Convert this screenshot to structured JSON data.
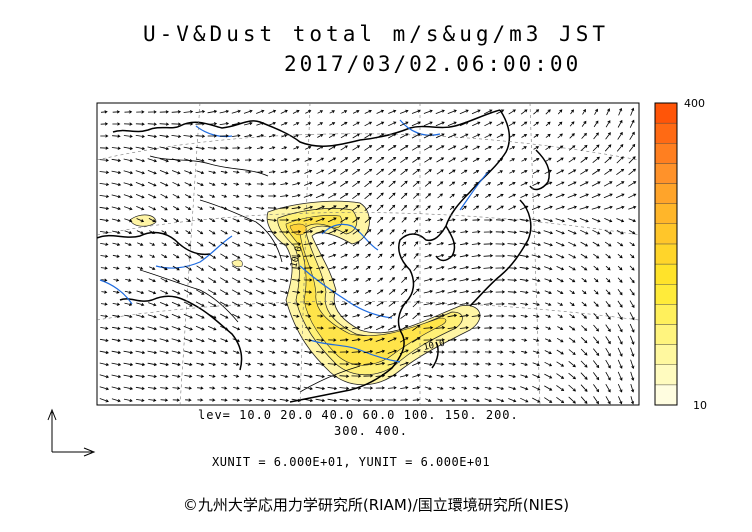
{
  "title": "U-V&Dust total m/s&ug/m3 JST",
  "datetime": "2017/03/02.06:00:00",
  "colorbar": {
    "max_label": "400",
    "min_label": "10",
    "colors": [
      "#fffde0",
      "#fffbbf",
      "#fff89f",
      "#fff47e",
      "#fff05c",
      "#ffeb3a",
      "#ffe32a",
      "#ffd52a",
      "#ffc62a",
      "#ffb62a",
      "#ffa42a",
      "#ff922a",
      "#ff7f20",
      "#ff6a14",
      "#ff5508"
    ]
  },
  "levels": {
    "line1": "lev= 10.0 20.0 40.0 60.0 100. 150. 200.",
    "line2": "300. 400."
  },
  "units": "XUNIT = 6.000E+01, YUNIT = 6.000E+01",
  "contour_labels": [
    "10.0",
    "10.0"
  ],
  "credit": "©九州大学応用力学研究所(RIAM)/国立環境研究所(NIES)"
}
